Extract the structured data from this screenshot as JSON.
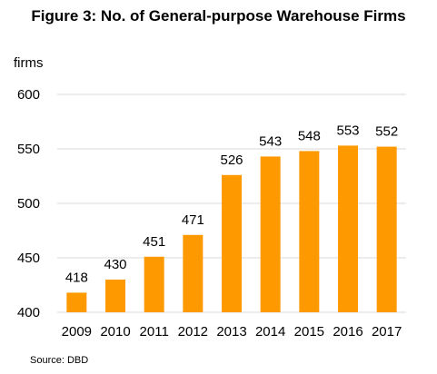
{
  "chart_data": {
    "type": "bar",
    "title": "Figure 3: No. of General-purpose Warehouse Firms",
    "ylabel": "firms",
    "xlabel": "",
    "categories": [
      "2009",
      "2010",
      "2011",
      "2012",
      "2013",
      "2014",
      "2015",
      "2016",
      "2017"
    ],
    "values": [
      418,
      430,
      451,
      471,
      526,
      543,
      548,
      553,
      552
    ],
    "data_labels": [
      "418",
      "430",
      "451",
      "471",
      "526",
      "543",
      "548",
      "553",
      "552"
    ],
    "ylim": [
      400,
      600
    ],
    "yticks": [
      400,
      450,
      500,
      550,
      600
    ],
    "ytick_labels": [
      "400",
      "450",
      "500",
      "550",
      "600"
    ],
    "grid": true,
    "bar_color": "#FF9900",
    "grid_color": "#D9D9D9"
  },
  "source": "Source: DBD"
}
